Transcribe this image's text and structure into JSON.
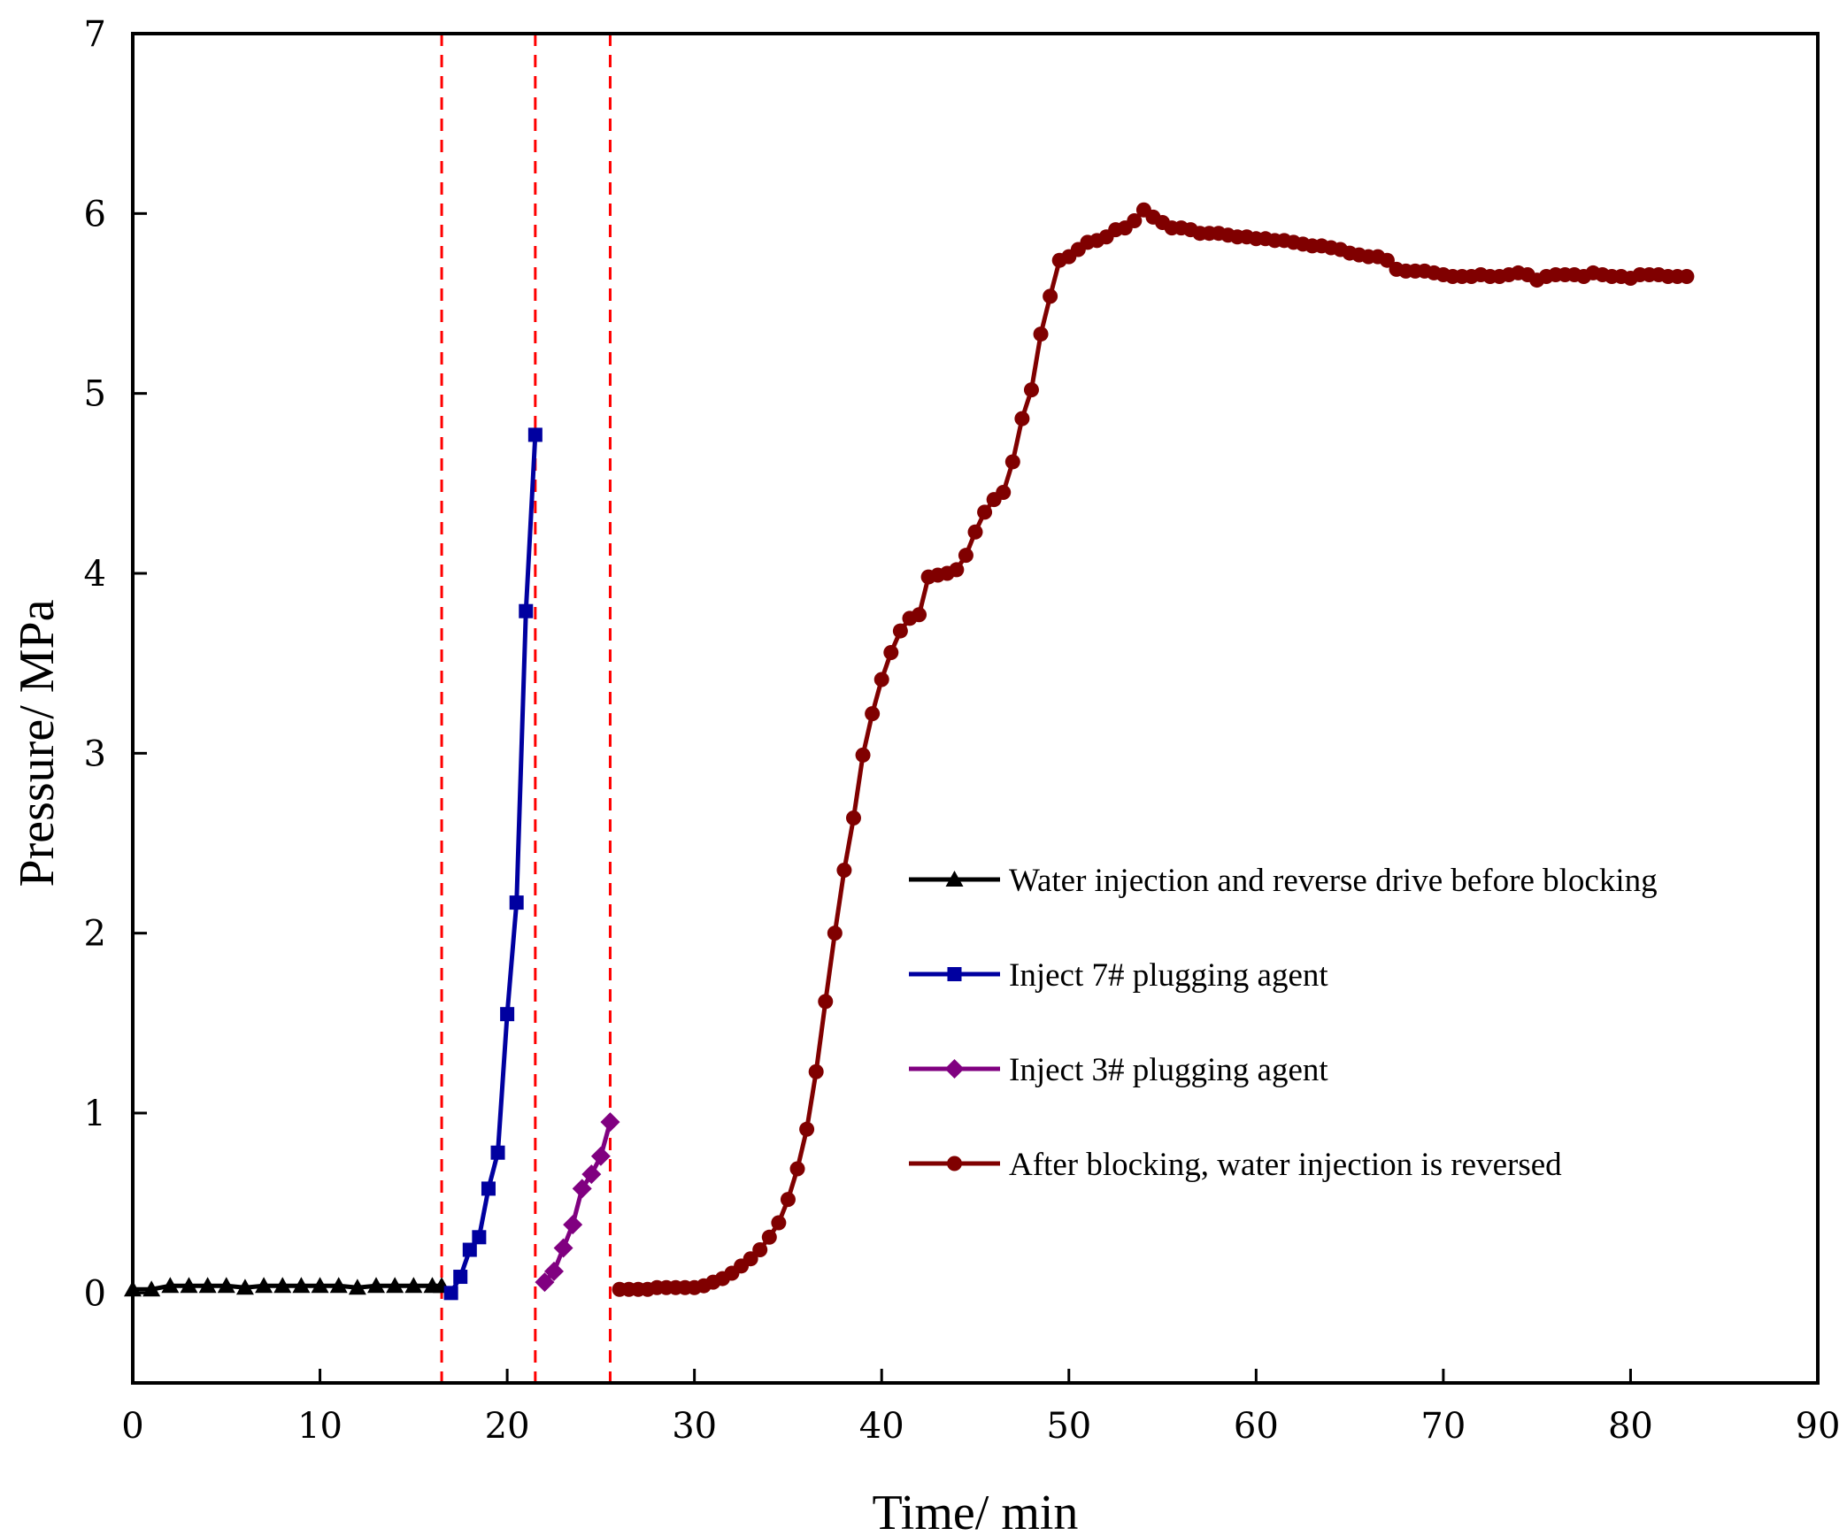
{
  "chart_data": {
    "type": "line",
    "title": "",
    "xlabel": "Time/ min",
    "ylabel": "Pressure/ MPa",
    "xlim": [
      0,
      90
    ],
    "ylim": [
      -0.5,
      7
    ],
    "xticks": [
      0,
      10,
      20,
      30,
      40,
      50,
      60,
      70,
      80,
      90
    ],
    "yticks": [
      0,
      1,
      2,
      3,
      4,
      5,
      6,
      7
    ],
    "grid": false,
    "legend_position": "right-center",
    "reference_lines": [
      {
        "axis": "x",
        "value": 16.5,
        "style": "dashed",
        "color": "#ff0000"
      },
      {
        "axis": "x",
        "value": 21.5,
        "style": "dashed",
        "color": "#ff0000"
      },
      {
        "axis": "x",
        "value": 25.5,
        "style": "dashed",
        "color": "#ff0000"
      }
    ],
    "series": [
      {
        "name": "Water injection and reverse drive before blocking",
        "color": "#000000",
        "marker": "triangle",
        "x": [
          0,
          1,
          2,
          3,
          4,
          5,
          6,
          7,
          8,
          9,
          10,
          11,
          12,
          13,
          14,
          15,
          16,
          16.5
        ],
        "y": [
          0.02,
          0.02,
          0.04,
          0.04,
          0.04,
          0.04,
          0.03,
          0.04,
          0.04,
          0.04,
          0.04,
          0.04,
          0.03,
          0.04,
          0.04,
          0.04,
          0.04,
          0.04
        ]
      },
      {
        "name": "Inject 7# plugging agent",
        "color": "#0000a0",
        "marker": "square",
        "x": [
          17.0,
          17.5,
          18.0,
          18.5,
          19.0,
          19.5,
          20.0,
          20.5,
          21.0,
          21.5
        ],
        "y": [
          0.0,
          0.09,
          0.24,
          0.31,
          0.58,
          0.78,
          1.55,
          2.17,
          3.79,
          4.77
        ]
      },
      {
        "name": "Inject 3# plugging agent",
        "color": "#800080",
        "marker": "diamond",
        "x": [
          22.0,
          22.5,
          23.0,
          23.5,
          24.0,
          24.5,
          25.0,
          25.5
        ],
        "y": [
          0.06,
          0.12,
          0.25,
          0.38,
          0.58,
          0.66,
          0.76,
          0.95
        ]
      },
      {
        "name": "After blocking, water injection is reversed",
        "color": "#800000",
        "marker": "circle",
        "x": [
          26.0,
          26.5,
          27.0,
          27.5,
          28.0,
          28.5,
          29.0,
          29.5,
          30.0,
          30.5,
          31.0,
          31.5,
          32.0,
          32.5,
          33.0,
          33.5,
          34.0,
          34.5,
          35.0,
          35.5,
          36.0,
          36.5,
          37.0,
          37.5,
          38.0,
          38.5,
          39.0,
          39.5,
          40.0,
          40.5,
          41.0,
          41.5,
          42.0,
          42.5,
          43.0,
          43.5,
          44.0,
          44.5,
          45.0,
          45.5,
          46.0,
          46.5,
          47.0,
          47.5,
          48.0,
          48.5,
          49.0,
          49.5,
          50.0,
          50.5,
          51.0,
          51.5,
          52.0,
          52.5,
          53.0,
          53.5,
          54.0,
          54.5,
          55.0,
          55.5,
          56.0,
          56.5,
          57.0,
          57.5,
          58.0,
          58.5,
          59.0,
          59.5,
          60.0,
          60.5,
          61.0,
          61.5,
          62.0,
          62.5,
          63.0,
          63.5,
          64.0,
          64.5,
          65.0,
          65.5,
          66.0,
          66.5,
          67.0,
          67.5,
          68.0,
          68.5,
          69.0,
          69.5,
          70.0,
          70.5,
          71.0,
          71.5,
          72.0,
          72.5,
          73.0,
          73.5,
          74.0,
          74.5,
          75.0,
          75.5,
          76.0,
          76.5,
          77.0,
          77.5,
          78.0,
          78.5,
          79.0,
          79.5,
          80.0,
          80.5,
          81.0,
          81.5,
          82.0,
          82.5,
          83.0
        ],
        "y": [
          0.02,
          0.02,
          0.02,
          0.02,
          0.03,
          0.03,
          0.03,
          0.03,
          0.03,
          0.04,
          0.06,
          0.08,
          0.11,
          0.15,
          0.19,
          0.24,
          0.31,
          0.39,
          0.52,
          0.69,
          0.91,
          1.23,
          1.62,
          2.0,
          2.35,
          2.64,
          2.99,
          3.22,
          3.41,
          3.56,
          3.68,
          3.75,
          3.77,
          3.98,
          3.99,
          4.0,
          4.02,
          4.1,
          4.23,
          4.34,
          4.41,
          4.45,
          4.62,
          4.86,
          5.02,
          5.33,
          5.54,
          5.74,
          5.76,
          5.8,
          5.84,
          5.85,
          5.87,
          5.91,
          5.92,
          5.96,
          6.02,
          5.98,
          5.95,
          5.92,
          5.92,
          5.91,
          5.89,
          5.89,
          5.89,
          5.88,
          5.87,
          5.87,
          5.86,
          5.86,
          5.85,
          5.85,
          5.84,
          5.83,
          5.82,
          5.82,
          5.81,
          5.8,
          5.78,
          5.77,
          5.76,
          5.76,
          5.74,
          5.69,
          5.68,
          5.68,
          5.68,
          5.67,
          5.66,
          5.65,
          5.65,
          5.65,
          5.66,
          5.65,
          5.65,
          5.66,
          5.67,
          5.66,
          5.63,
          5.65,
          5.66,
          5.66,
          5.66,
          5.65,
          5.67,
          5.66,
          5.65,
          5.65,
          5.64,
          5.66,
          5.66,
          5.66,
          5.65,
          5.65,
          5.65
        ]
      }
    ]
  }
}
